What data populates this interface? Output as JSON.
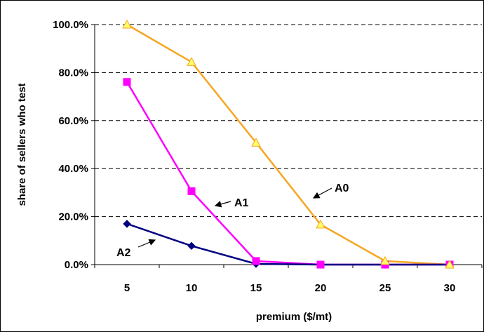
{
  "chart_data": {
    "type": "line",
    "title": "",
    "xlabel": "premium ($/mt)",
    "ylabel": "share of sellers who test",
    "categories": [
      "5",
      "10",
      "15",
      "20",
      "25",
      "30"
    ],
    "ylim": [
      0,
      100
    ],
    "yticks": [
      "0.0%",
      "20.0%",
      "40.0%",
      "60.0%",
      "80.0%",
      "100.0%"
    ],
    "grid": "horizontal-dashed",
    "legend": "none",
    "series": [
      {
        "name": "A0",
        "color": "#F5A623",
        "marker": "triangle",
        "marker_fill": "#FFFF66",
        "values": [
          100,
          84.4,
          50.8,
          16.7,
          1.5,
          0
        ]
      },
      {
        "name": "A1",
        "color": "#FF00FF",
        "marker": "square",
        "marker_fill": "#FF00FF",
        "values": [
          76.1,
          30.6,
          1.5,
          0,
          0,
          0
        ]
      },
      {
        "name": "A2",
        "color": "#000080",
        "marker": "diamond",
        "marker_fill": "#000080",
        "values": [
          17.0,
          7.8,
          0.3,
          0,
          0,
          0
        ]
      }
    ],
    "annotations": [
      {
        "text": "A0",
        "series": "A0"
      },
      {
        "text": "A1",
        "series": "A1"
      },
      {
        "text": "A2",
        "series": "A2"
      }
    ]
  }
}
